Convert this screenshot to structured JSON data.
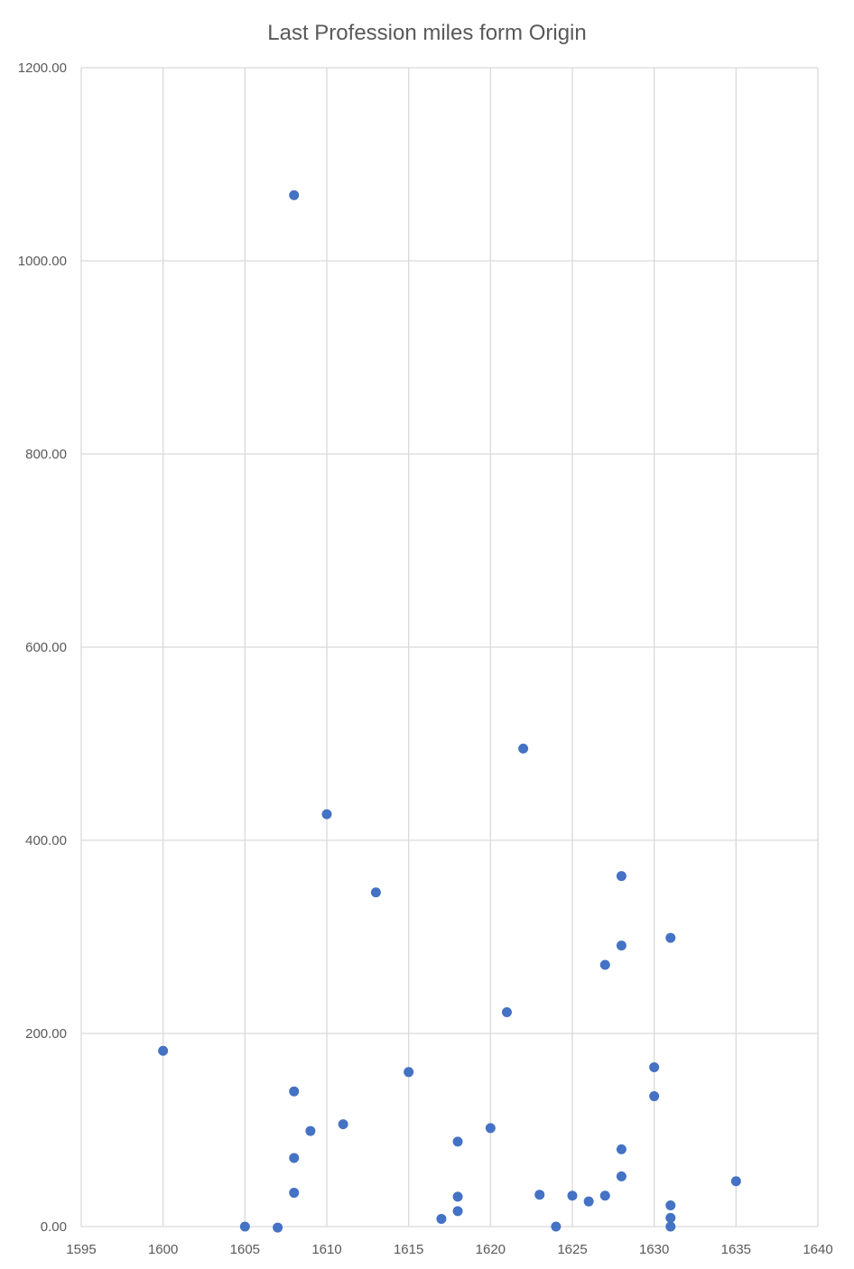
{
  "chart_data": {
    "type": "scatter",
    "title": "Last Profession miles form Origin",
    "xlabel": "",
    "ylabel": "",
    "xlim": [
      1595,
      1640
    ],
    "ylim": [
      0,
      1200
    ],
    "x_ticks": [
      "1595",
      "1600",
      "1605",
      "1610",
      "1615",
      "1620",
      "1625",
      "1630",
      "1635",
      "1640"
    ],
    "y_ticks": [
      "0.00",
      "200.00",
      "400.00",
      "600.00",
      "800.00",
      "1000.00",
      "1200.00"
    ],
    "grid": true,
    "legend": "none",
    "marker_color": "#4472c4",
    "series": [
      {
        "points": [
          {
            "x": 1600,
            "y": 182
          },
          {
            "x": 1605,
            "y": 0
          },
          {
            "x": 1607,
            "y": -1
          },
          {
            "x": 1608,
            "y": 1068
          },
          {
            "x": 1608,
            "y": 140
          },
          {
            "x": 1608,
            "y": 71
          },
          {
            "x": 1608,
            "y": 35
          },
          {
            "x": 1609,
            "y": 99
          },
          {
            "x": 1610,
            "y": 427
          },
          {
            "x": 1611,
            "y": 106
          },
          {
            "x": 1613,
            "y": 346
          },
          {
            "x": 1615,
            "y": 160
          },
          {
            "x": 1617,
            "y": 8
          },
          {
            "x": 1618,
            "y": 88
          },
          {
            "x": 1618,
            "y": 31
          },
          {
            "x": 1618,
            "y": 16
          },
          {
            "x": 1620,
            "y": 102
          },
          {
            "x": 1621,
            "y": 222
          },
          {
            "x": 1622,
            "y": 495
          },
          {
            "x": 1623,
            "y": 33
          },
          {
            "x": 1624,
            "y": 0
          },
          {
            "x": 1625,
            "y": 32
          },
          {
            "x": 1626,
            "y": 26
          },
          {
            "x": 1627,
            "y": 271
          },
          {
            "x": 1627,
            "y": 32
          },
          {
            "x": 1628,
            "y": 363
          },
          {
            "x": 1628,
            "y": 291
          },
          {
            "x": 1628,
            "y": 80
          },
          {
            "x": 1628,
            "y": 52
          },
          {
            "x": 1630,
            "y": 165
          },
          {
            "x": 1630,
            "y": 135
          },
          {
            "x": 1631,
            "y": 299
          },
          {
            "x": 1631,
            "y": 22
          },
          {
            "x": 1631,
            "y": 9
          },
          {
            "x": 1631,
            "y": 0
          },
          {
            "x": 1635,
            "y": 47
          }
        ]
      }
    ]
  }
}
